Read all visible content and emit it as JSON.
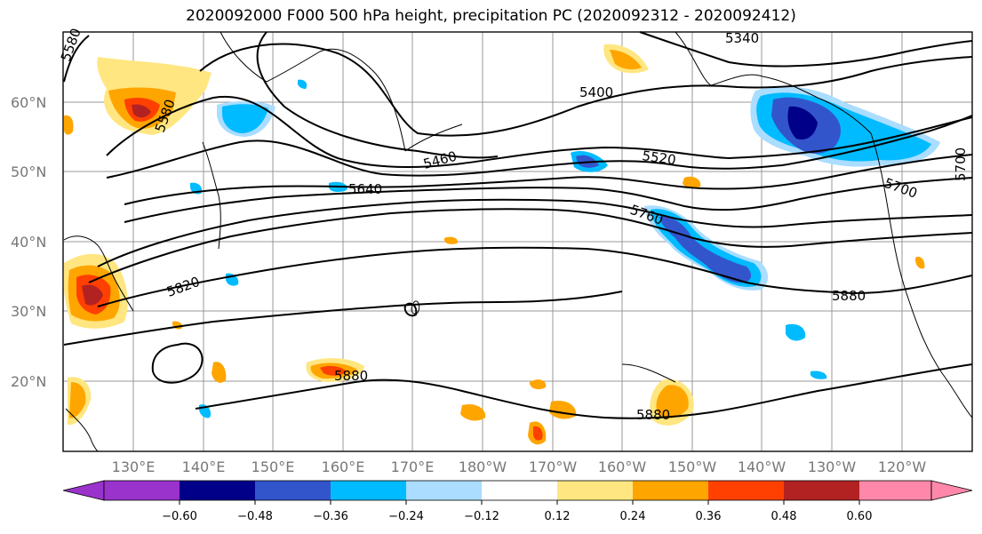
{
  "title": "2020092000 F000 500 hPa height, precipitation PC (2020092312 - 2020092412)",
  "lat_labels": [
    "60°N",
    "50°N",
    "40°N",
    "30°N",
    "20°N"
  ],
  "lon_labels": [
    "130°E",
    "140°E",
    "150°E",
    "160°E",
    "170°E",
    "180°W",
    "170°W",
    "160°W",
    "150°W",
    "140°W",
    "130°W",
    "120°W"
  ],
  "contour_labels": [
    "5340",
    "5400",
    "5460",
    "5520",
    "5580",
    "5580",
    "5640",
    "5700",
    "5700",
    "5760",
    "5820",
    "5880",
    "5880",
    "5880"
  ],
  "colorbar": {
    "ticks": [
      "−0.60",
      "−0.48",
      "−0.36",
      "−0.24",
      "−0.12",
      "0.12",
      "0.24",
      "0.36",
      "0.48",
      "0.60"
    ],
    "colors": [
      "#9933cc",
      "#000088",
      "#3355cc",
      "#00bbff",
      "#aaddff",
      "#ffffff",
      "#ffe680",
      "#ffa500",
      "#ff4000",
      "#b22222",
      "#ff88aa"
    ]
  }
}
